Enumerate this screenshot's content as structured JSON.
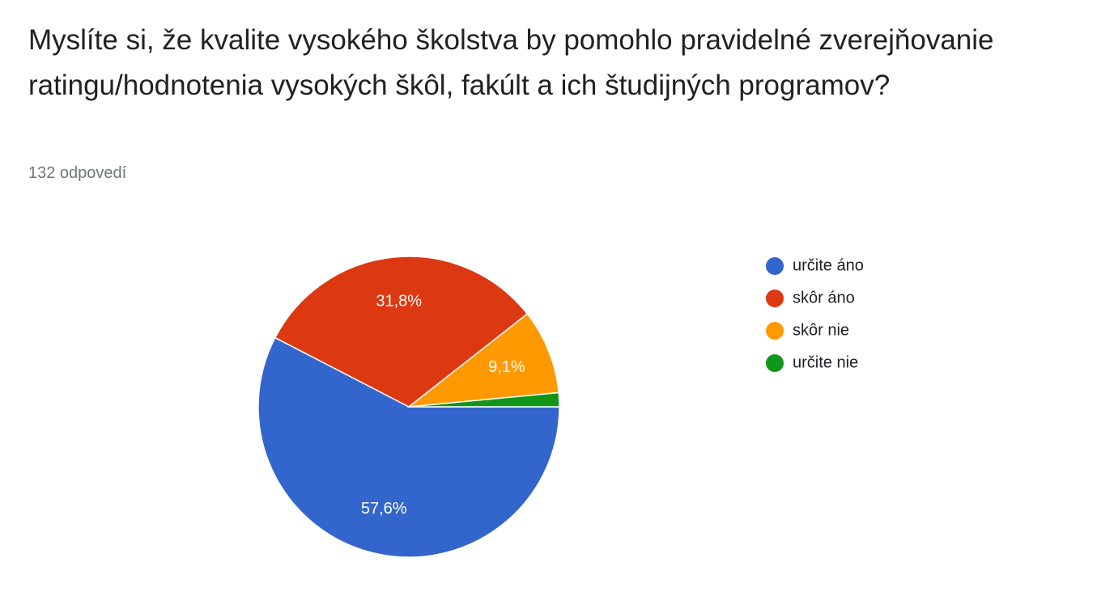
{
  "chart_data": {
    "type": "pie",
    "title": "Myslíte si, že kvalite vysokého školstva by pomohlo pravidelné zverejňovanie ratingu/hodnotenia vysokých škôl, fakúlt a ich študijných programov?",
    "subtitle": "132 odpovedí",
    "categories": [
      "určite áno",
      "skôr áno",
      "skôr nie",
      "určite nie"
    ],
    "values": [
      57.6,
      31.8,
      9.1,
      1.5
    ],
    "value_labels": [
      "57,6%",
      "31,8%",
      "9,1%",
      null
    ],
    "colors": [
      "#3366cc",
      "#dc3912",
      "#ff9900",
      "#109618"
    ]
  }
}
